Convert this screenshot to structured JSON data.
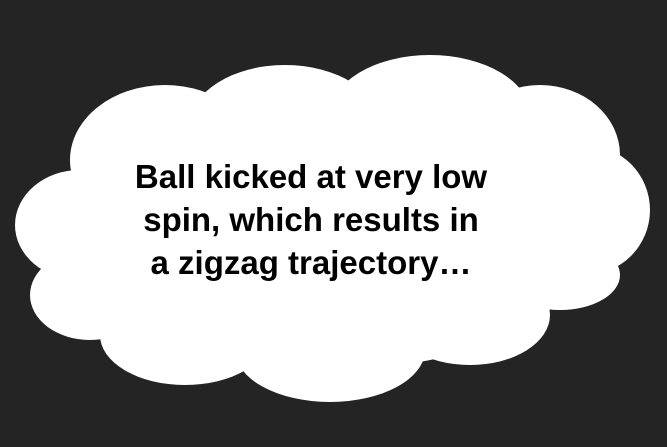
{
  "colors": {
    "background": "#242424",
    "cloud_fill": "#ffffff",
    "text": "#000000"
  },
  "caption": {
    "lines": [
      "Ball kicked at very low",
      "spin, which results in",
      "a zigzag trajectory…"
    ]
  }
}
